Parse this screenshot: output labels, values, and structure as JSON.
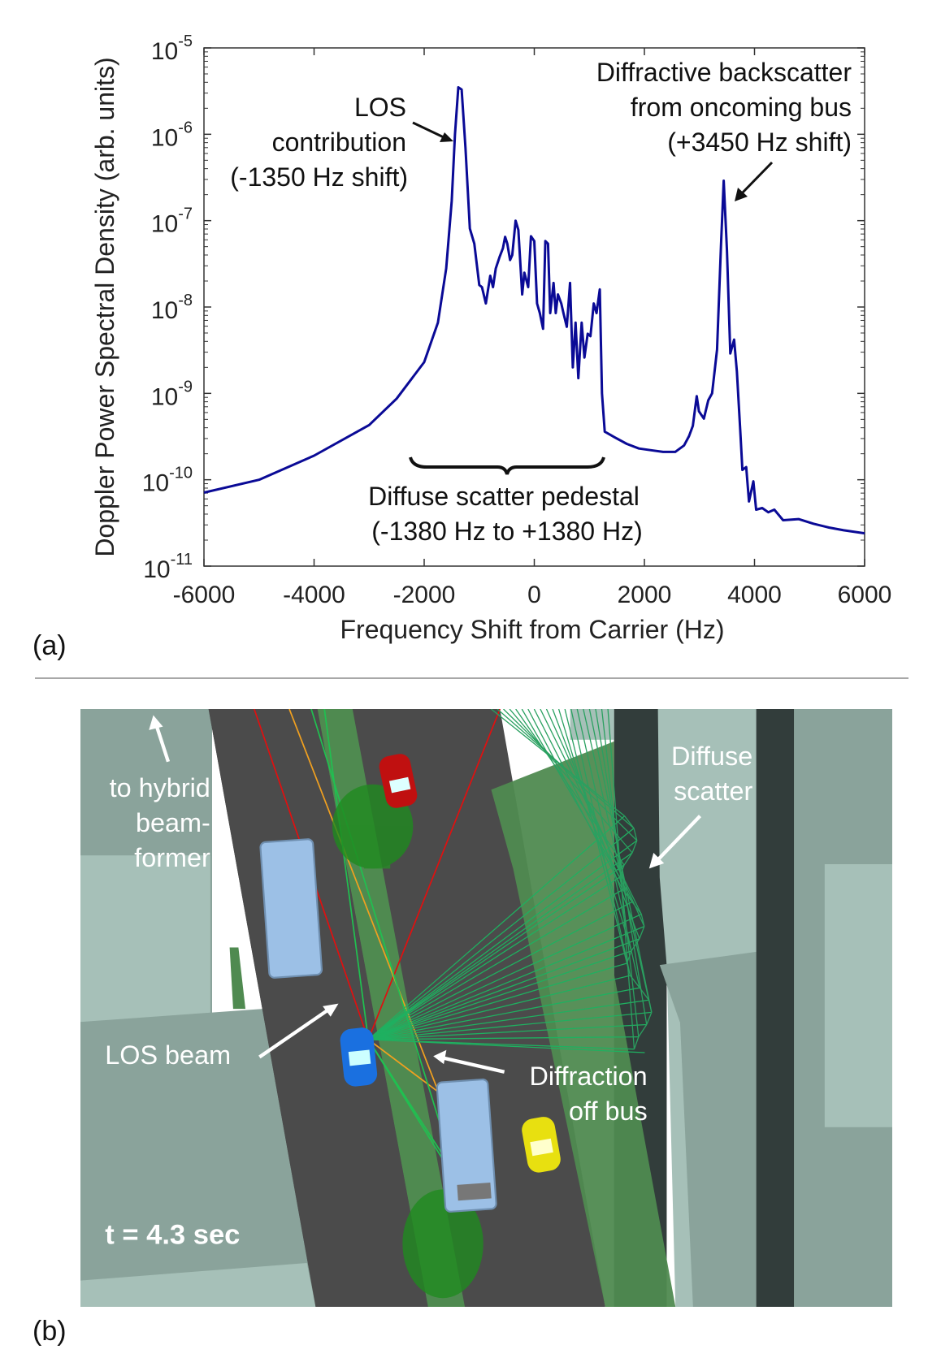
{
  "panel_a_label": "(a)",
  "panel_b_label": "(b)",
  "chart_data": {
    "type": "line",
    "xlabel": "Frequency Shift from Carrier (Hz)",
    "ylabel": "Doppler Power Spectral Density (arb. units)",
    "xlim": [
      -6000,
      6000
    ],
    "ylim": [
      1e-11,
      1e-05
    ],
    "yscale": "log",
    "xticks": [
      -6000,
      -4000,
      -2000,
      0,
      2000,
      4000,
      6000
    ],
    "xtick_labels": [
      "-6000",
      "-4000",
      "-2000",
      "0",
      "2000",
      "4000",
      "6000"
    ],
    "yticks": [
      1e-05,
      1e-06,
      1e-07,
      1e-08,
      1e-09,
      1e-10,
      1e-11
    ],
    "ytick_base": "10",
    "ytick_exponents": [
      "-5",
      "-6",
      "-7",
      "-8",
      "-9",
      "-10",
      "-11"
    ],
    "grid": false,
    "line_color": "#0a0a96",
    "series": [
      {
        "x": [
          -6000,
          -5000,
          -4000,
          -3000,
          -2500,
          -2000,
          -1750,
          -1600,
          -1500,
          -1440,
          -1380,
          -1320,
          -1250,
          -1170,
          -1090,
          -1000,
          -950,
          -880,
          -800,
          -750,
          -700,
          -630,
          -570,
          -530,
          -490,
          -440,
          -400,
          -340,
          -290,
          -220,
          -180,
          -110,
          -60,
          0,
          50,
          100,
          160,
          200,
          250,
          290,
          350,
          390,
          430,
          490,
          530,
          590,
          650,
          700,
          750,
          800,
          860,
          910,
          970,
          1020,
          1080,
          1130,
          1190,
          1230,
          1280,
          1350,
          1460,
          1680,
          1900,
          2120,
          2340,
          2560,
          2720,
          2810,
          2880,
          2950,
          2990,
          3080,
          3160,
          3230,
          3320,
          3390,
          3440,
          3500,
          3560,
          3630,
          3680,
          3740,
          3780,
          3850,
          3900,
          3980,
          4030,
          4140,
          4250,
          4360,
          4520,
          4800,
          5070,
          5350,
          5620,
          6000
        ],
        "y": [
          7.1e-11,
          1e-10,
          1.9e-10,
          4.3e-10,
          8.7e-10,
          2.3e-09,
          6.6e-09,
          2.8e-08,
          1.7e-07,
          1e-06,
          3.5e-06,
          3.3e-06,
          7e-07,
          8.1e-08,
          5.4e-08,
          1.8e-08,
          1.7e-08,
          1.1e-08,
          2.3e-08,
          1.7e-08,
          2.8e-08,
          3.8e-08,
          4.8e-08,
          6.5e-08,
          5.4e-08,
          3.5e-08,
          4e-08,
          1e-07,
          7.8e-08,
          1.4e-08,
          2.5e-08,
          1.7e-08,
          6.6e-08,
          5.8e-08,
          1.1e-08,
          8.5e-09,
          5.6e-09,
          5.8e-08,
          5.4e-08,
          8.5e-09,
          1.9e-08,
          8.5e-09,
          1.4e-08,
          1.1e-08,
          8.5e-09,
          5.9e-09,
          1.9e-08,
          2e-09,
          6.6e-09,
          1.5e-09,
          6.6e-09,
          2.6e-09,
          4.9e-09,
          4.6e-09,
          1.1e-08,
          8.5e-09,
          1.6e-08,
          1e-09,
          3.6e-10,
          3.4e-10,
          3.1e-10,
          2.6e-10,
          2.3e-10,
          2.2e-10,
          2.1e-10,
          2.1e-10,
          2.5e-10,
          3.2e-10,
          4.2e-10,
          9.3e-10,
          6.2e-10,
          5.1e-10,
          8.3e-10,
          1e-09,
          3.2e-09,
          5e-08,
          2.9e-07,
          4.5e-08,
          2.9e-09,
          4.2e-09,
          1.8e-09,
          3.8e-10,
          1.3e-10,
          1.4e-10,
          5.6e-11,
          9.6e-11,
          4.5e-11,
          4.7e-11,
          4.2e-11,
          4.5e-11,
          3.4e-11,
          3.5e-11,
          3.1e-11,
          2.8e-11,
          2.6e-11,
          2.4e-11
        ]
      }
    ],
    "annotations": {
      "los": [
        "LOS",
        "contribution",
        "(-1350 Hz shift)"
      ],
      "bus": [
        "Diffractive backscatter",
        "from oncoming bus",
        "(+3450 Hz shift)"
      ],
      "pedestal": [
        "Diffuse scatter pedestal",
        "(-1380 Hz to +1380 Hz)"
      ]
    }
  },
  "scene": {
    "labels": {
      "hybrid": [
        "to hybrid",
        "beam-",
        "former"
      ],
      "diffuse": [
        "Diffuse",
        "scatter"
      ],
      "los_beam": "LOS beam",
      "diffraction": [
        "Diffraction",
        "off bus"
      ],
      "time": "t = 4.3 sec"
    },
    "colors": {
      "building_light": "#a6c0b8",
      "building_mid": "#8aa39b",
      "building_dark": "#323d3b",
      "road": "#4b4b4b",
      "grass": "#4f8a50",
      "ray_los": "#e01010",
      "ray_diffraction": "#f0a020",
      "ray_diffuse": "#20c050"
    }
  }
}
